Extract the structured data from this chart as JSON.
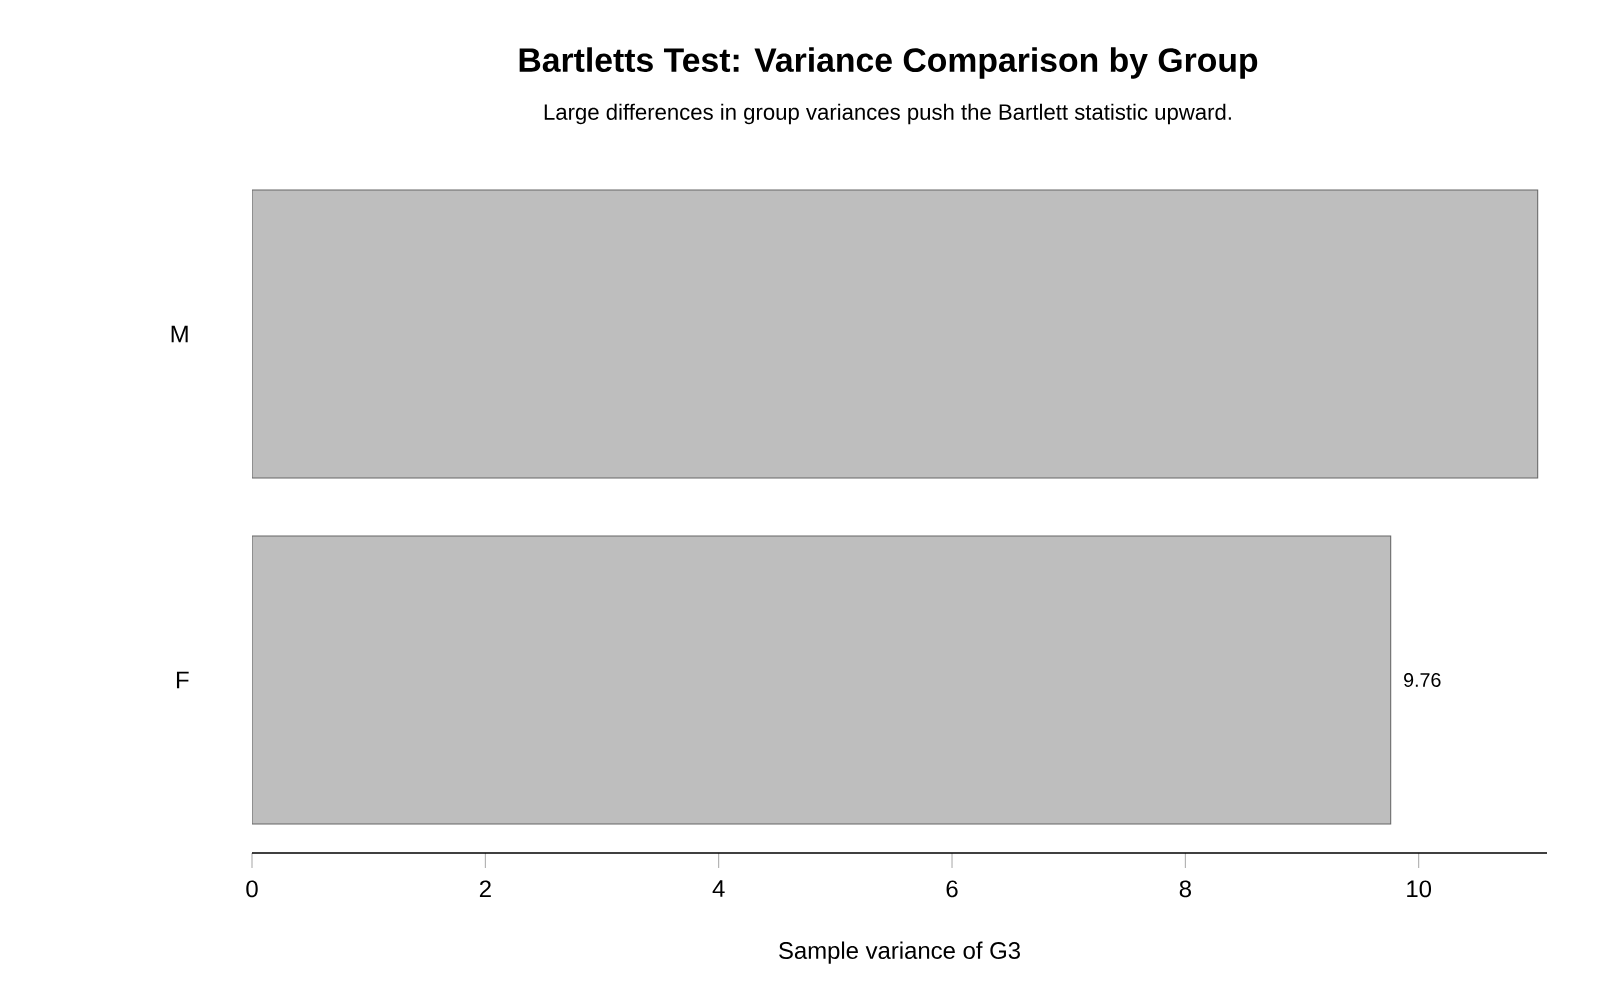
{
  "chart_data": {
    "type": "bar",
    "orientation": "horizontal",
    "title": "Bartletts Test: Variance Comparison by Group",
    "subtitle": "Large differences in group variances push the Bartlett statistic upward.",
    "xlabel": "Sample variance of G3",
    "categories": [
      "M",
      "F"
    ],
    "values": [
      11.02,
      9.76
    ],
    "value_labels": [
      null,
      "9.76"
    ],
    "color": "#bebebe",
    "xlim": [
      0,
      11.1
    ],
    "xticks": [
      0,
      2,
      4,
      6,
      8,
      10
    ]
  }
}
